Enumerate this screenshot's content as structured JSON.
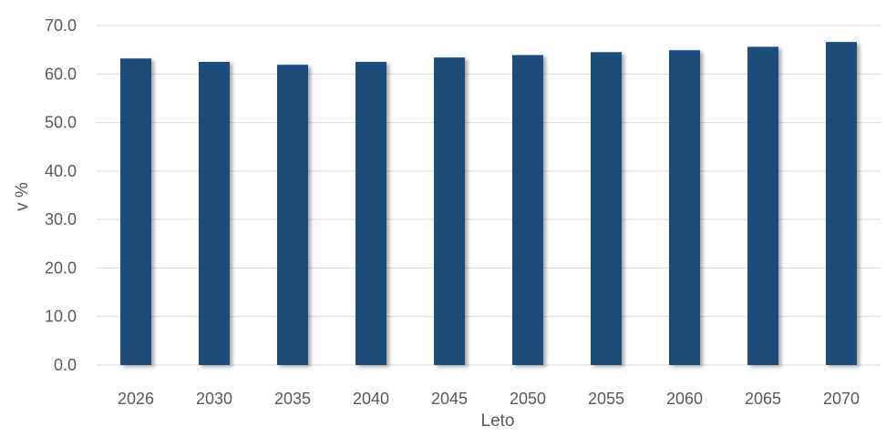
{
  "chart_data": {
    "type": "bar",
    "categories": [
      "2026",
      "2030",
      "2035",
      "2040",
      "2045",
      "2050",
      "2055",
      "2060",
      "2065",
      "2070"
    ],
    "values": [
      63.2,
      62.5,
      61.9,
      62.5,
      63.4,
      63.9,
      64.5,
      64.9,
      65.6,
      66.6
    ],
    "title": "",
    "xlabel": "Leto",
    "ylabel": "v %",
    "ylim": [
      0,
      70
    ],
    "yticks": [
      "0.0",
      "10.0",
      "20.0",
      "30.0",
      "40.0",
      "50.0",
      "60.0",
      "70.0"
    ],
    "grid": true,
    "legend": "none",
    "bar_color": "#1f4e79",
    "grid_color": "#d9d9d9"
  }
}
